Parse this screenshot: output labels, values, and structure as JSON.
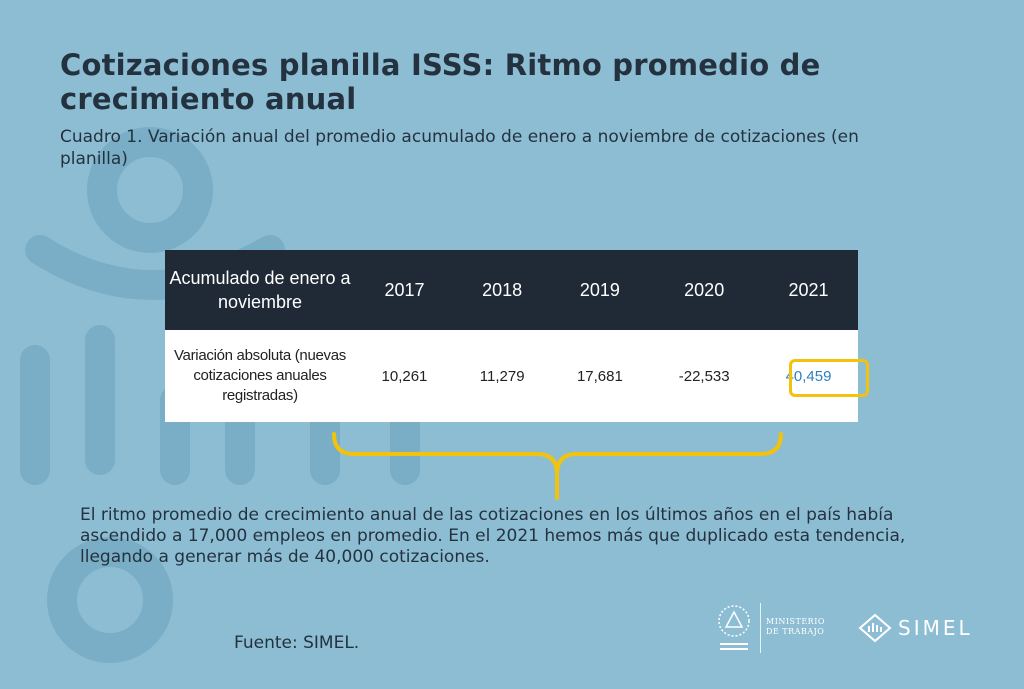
{
  "header": {
    "title": "Cotizaciones planilla ISSS: Ritmo promedio de crecimiento anual",
    "subtitle": "Cuadro 1. Variación anual del promedio acumulado de enero a noviembre de cotizaciones (en planilla)"
  },
  "table": {
    "header_label": "Acumulado de enero a noviembre",
    "years": [
      "2017",
      "2018",
      "2019",
      "2020",
      "2021"
    ],
    "row_label": "Variación absoluta (nuevas cotizaciones anuales registradas)",
    "values": [
      "10,261",
      "11,279",
      "17,681",
      "-22,533",
      "40,459"
    ]
  },
  "body_text": "El ritmo promedio de crecimiento anual de las cotizaciones en los últimos años en el país había ascendido a 17,000 empleos en promedio. En el 2021 hemos más que duplicado esta tendencia, llegando a generar más de 40,000 cotizaciones.",
  "source": "Fuente: SIMEL.",
  "logos": {
    "gov_line1": "MINISTERIO",
    "gov_line2": "DE TRABAJO",
    "simel": "SIMEL"
  },
  "colors": {
    "background": "#8dbdd3",
    "table_header": "#1f2a36",
    "highlight": "#f2c20d",
    "highlight_text": "#2f7fbf"
  }
}
